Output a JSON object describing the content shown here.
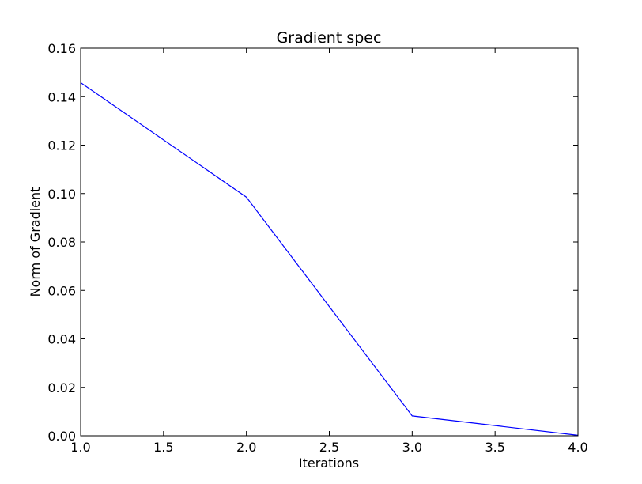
{
  "chart_data": {
    "type": "line",
    "title": "Gradient spec",
    "xlabel": "Iterations",
    "ylabel": "Norm of Gradient",
    "xlim": [
      1.0,
      4.0
    ],
    "ylim": [
      0.0,
      0.16
    ],
    "grid": false,
    "x": [
      1.0,
      2.0,
      3.0,
      4.0
    ],
    "series": [
      {
        "values": [
          0.1458,
          0.0985,
          0.0082,
          0.0002
        ],
        "color": "#0000ff"
      }
    ],
    "xticks": [
      1.0,
      1.5,
      2.0,
      2.5,
      3.0,
      3.5,
      4.0
    ],
    "xtick_labels": [
      "1.0",
      "1.5",
      "2.0",
      "2.5",
      "3.0",
      "3.5",
      "4.0"
    ],
    "yticks": [
      0.0,
      0.02,
      0.04,
      0.06,
      0.08,
      0.1,
      0.12,
      0.14,
      0.16
    ],
    "ytick_labels": [
      "0.00",
      "0.02",
      "0.04",
      "0.06",
      "0.08",
      "0.10",
      "0.12",
      "0.14",
      "0.16"
    ]
  }
}
